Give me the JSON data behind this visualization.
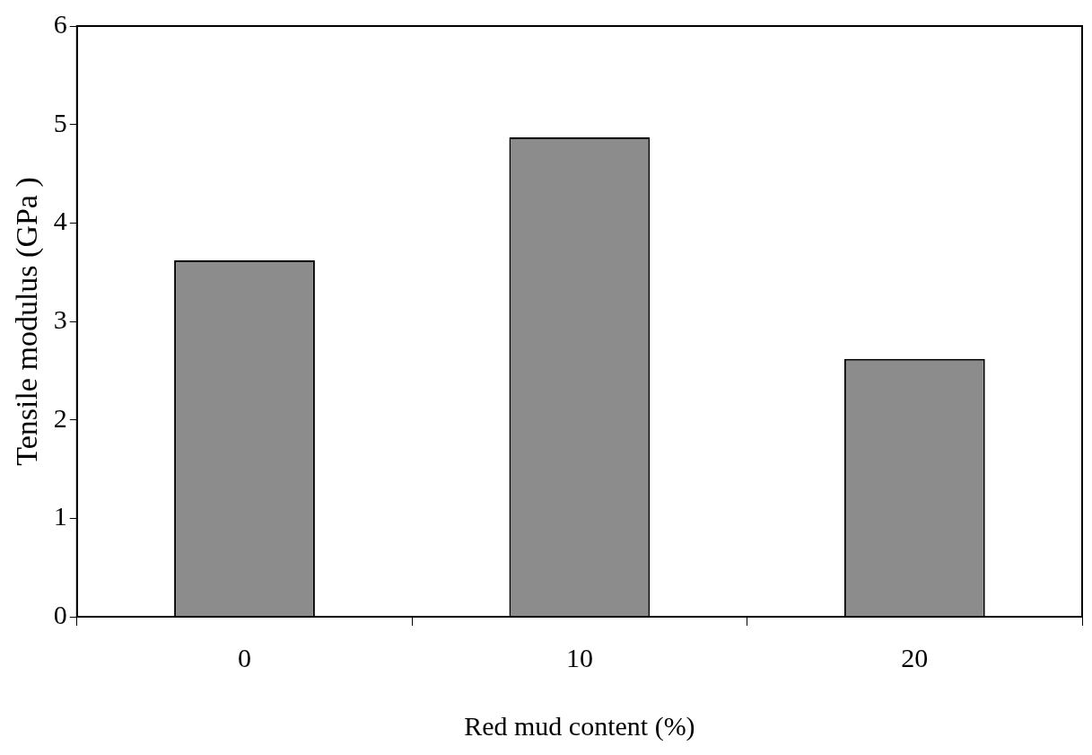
{
  "chart_data": {
    "type": "bar",
    "xlabel": "Red mud content (%)",
    "ylabel": "Tensile modulus (GPa )",
    "categories": [
      "0",
      "10",
      "20"
    ],
    "values": [
      3.62,
      4.87,
      2.62
    ],
    "color": "#8c8c8c",
    "ylim": [
      0,
      6
    ],
    "yticks": [
      0,
      1,
      2,
      3,
      4,
      5,
      6
    ],
    "grid": false,
    "legend": false
  }
}
